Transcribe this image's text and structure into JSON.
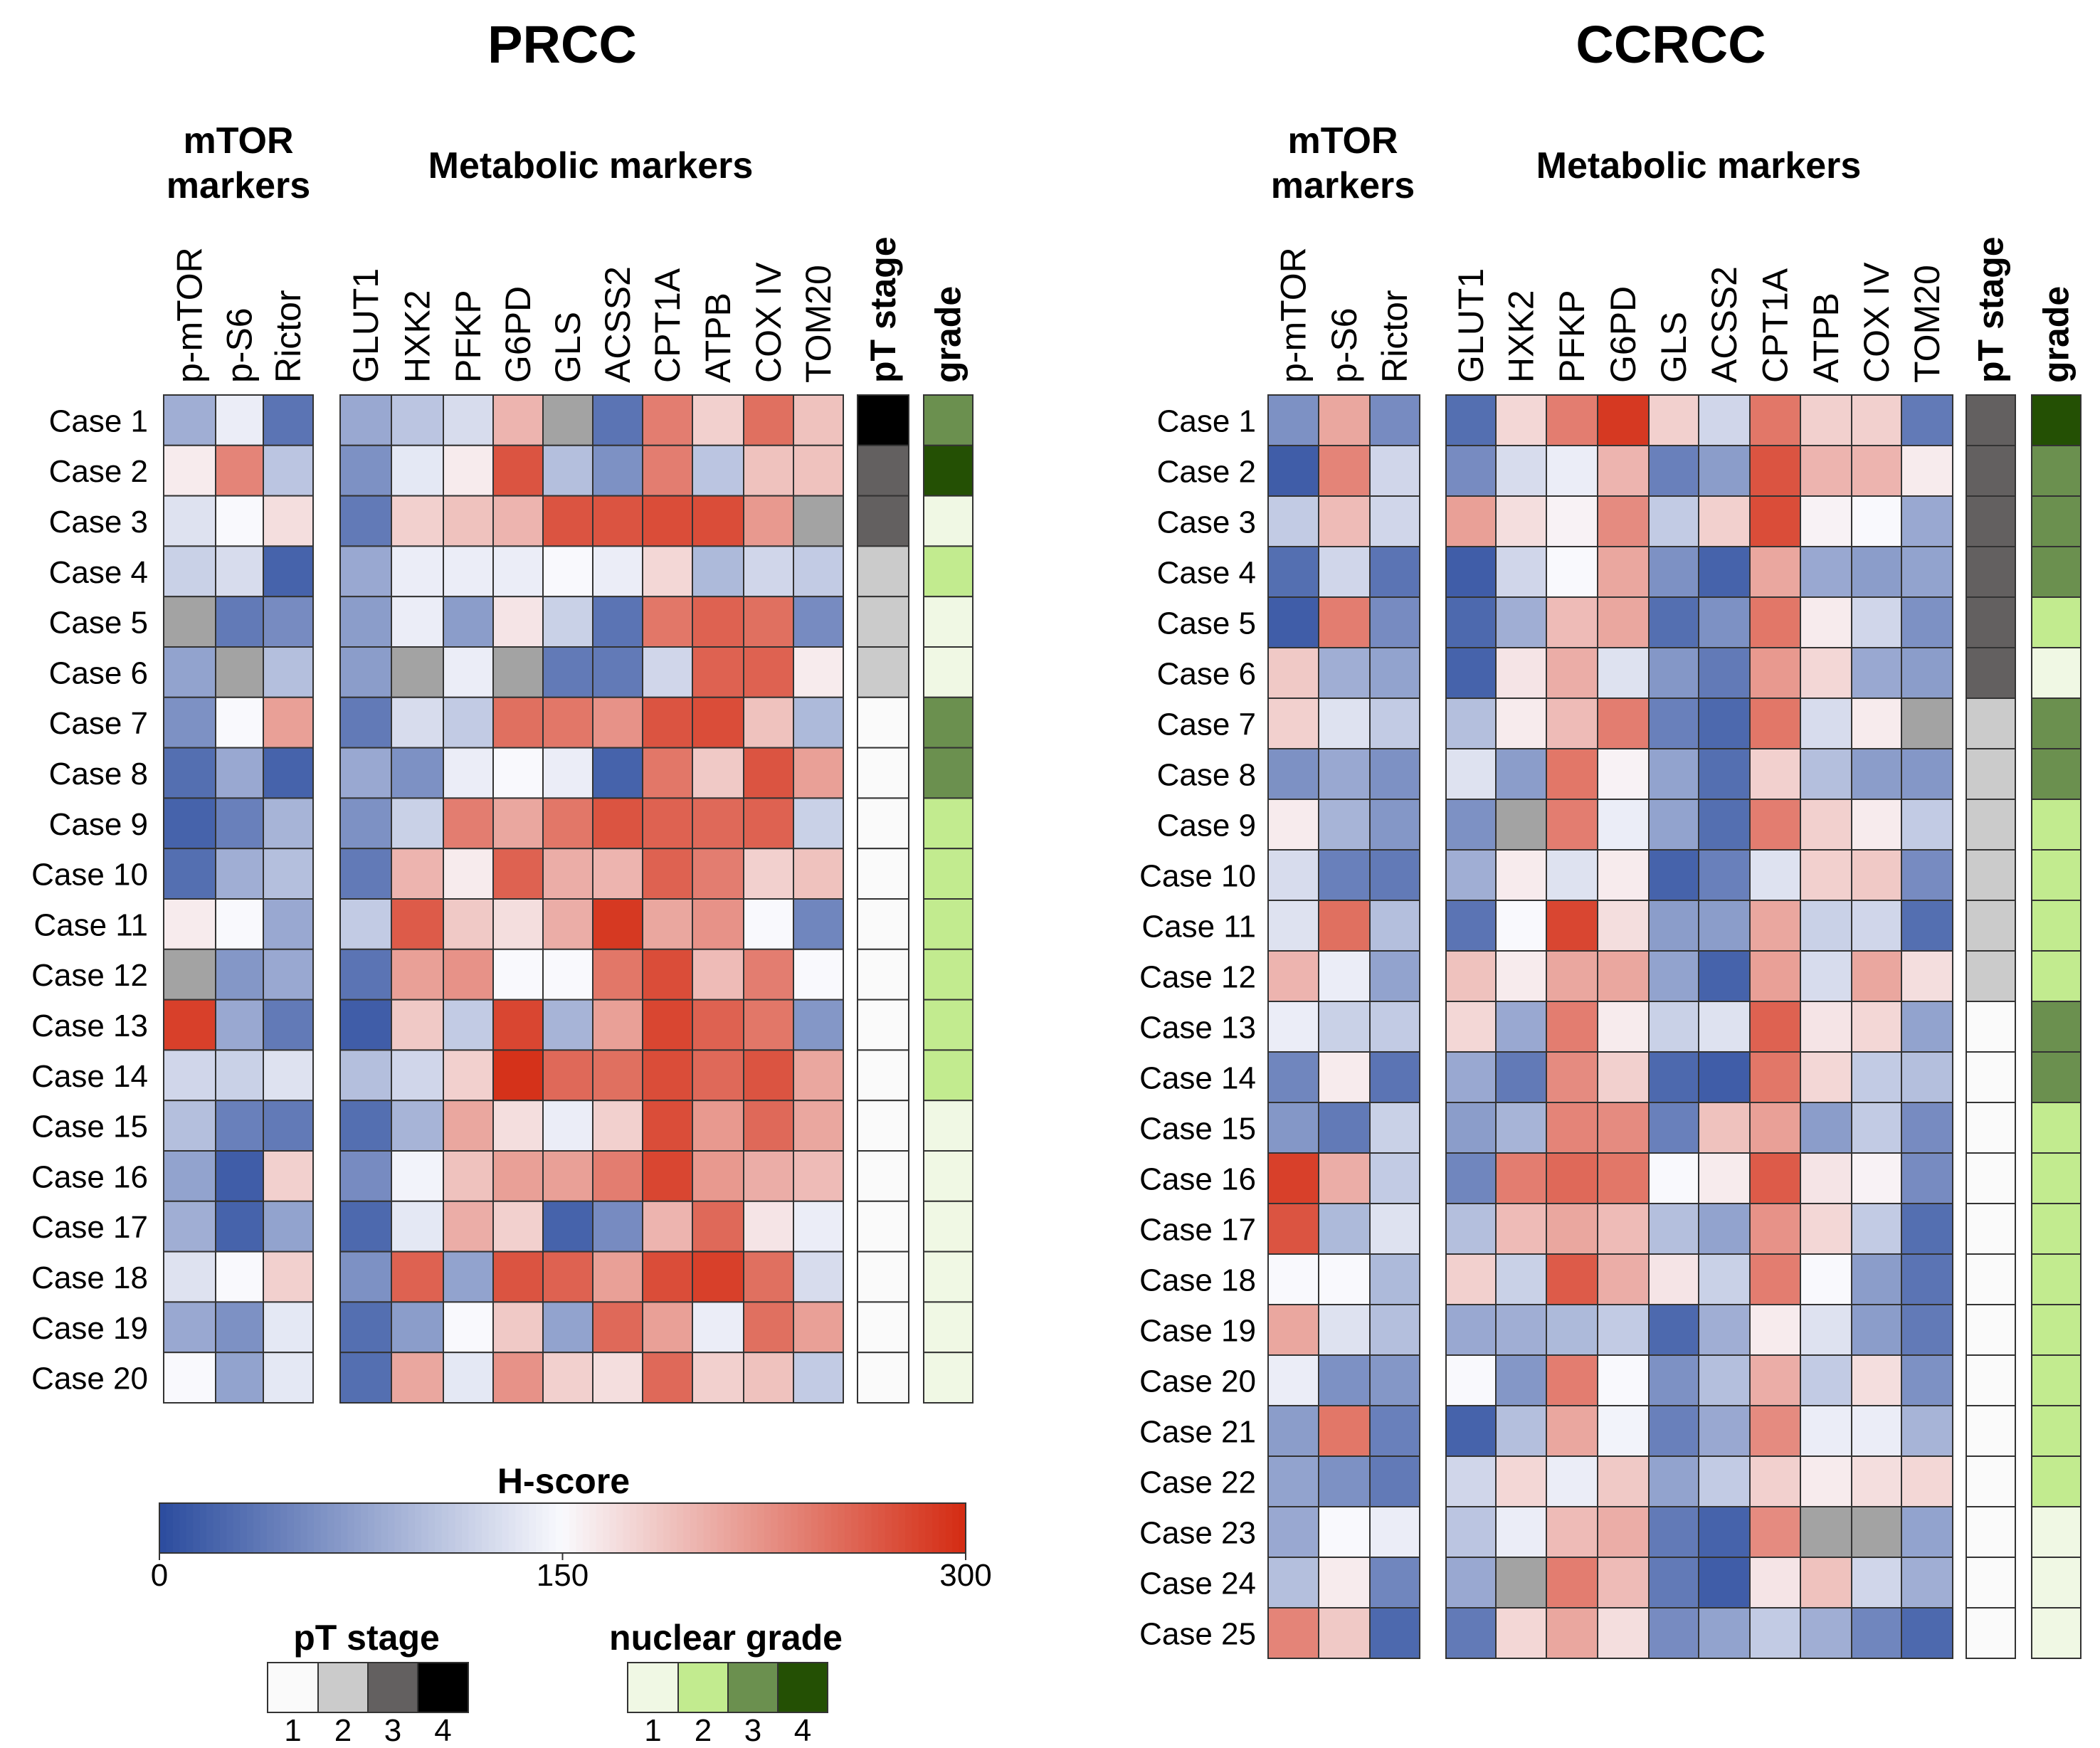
{
  "chart_data": [
    {
      "type": "heatmap",
      "title": "PRCC",
      "groups": {
        "mtor": "mTOR markers",
        "metabolic": "Metabolic markers"
      },
      "mtor_columns": [
        "p-mTOR",
        "p-S6",
        "Rictor"
      ],
      "metabolic_columns": [
        "GLUT1",
        "HXK2",
        "PFKP",
        "G6PD",
        "GLS",
        "ACSS2",
        "CPT1A",
        "ATPB",
        "COX IV",
        "TOM20"
      ],
      "stage_label": "pT stage",
      "grade_label": "grade",
      "rows": [
        "Case 1",
        "Case 2",
        "Case 3",
        "Case 4",
        "Case 5",
        "Case 6",
        "Case 7",
        "Case 8",
        "Case 9",
        "Case 10",
        "Case 11",
        "Case 12",
        "Case 13",
        "Case 14",
        "Case 15",
        "Case 16",
        "Case 17",
        "Case 18",
        "Case 19",
        "Case 20"
      ],
      "hscore": [
        [
          85,
          140,
          35,
          80,
          105,
          125,
          200,
          null,
          35,
          240,
          180,
          250,
          190
        ],
        [
          160,
          235,
          105,
          60,
          135,
          160,
          270,
          100,
          60,
          240,
          105,
          190,
          190
        ],
        [
          130,
          150,
          170,
          40,
          180,
          190,
          200,
          270,
          270,
          275,
          275,
          220,
          null
        ],
        [
          115,
          125,
          20,
          80,
          140,
          140,
          140,
          150,
          140,
          175,
          95,
          120,
          110
        ],
        [
          null,
          40,
          55,
          70,
          140,
          70,
          165,
          115,
          35,
          245,
          260,
          250,
          55
        ],
        [
          75,
          null,
          100,
          70,
          null,
          140,
          null,
          40,
          40,
          120,
          260,
          260,
          160
        ],
        [
          60,
          150,
          215,
          40,
          125,
          110,
          250,
          245,
          225,
          270,
          275,
          190,
          95
        ],
        [
          30,
          80,
          20,
          80,
          60,
          140,
          150,
          140,
          20,
          245,
          185,
          270,
          215
        ],
        [
          20,
          45,
          90,
          60,
          115,
          240,
          210,
          245,
          270,
          260,
          255,
          260,
          115
        ],
        [
          30,
          85,
          100,
          40,
          200,
          160,
          260,
          205,
          200,
          260,
          240,
          180,
          190
        ],
        [
          160,
          150,
          80,
          110,
          265,
          185,
          170,
          205,
          290,
          210,
          225,
          150,
          50
        ],
        [
          null,
          65,
          80,
          35,
          215,
          225,
          150,
          150,
          245,
          275,
          195,
          240,
          150
        ],
        [
          285,
          80,
          40,
          15,
          185,
          110,
          280,
          90,
          215,
          280,
          260,
          245,
          65
        ],
        [
          120,
          115,
          130,
          100,
          120,
          180,
          295,
          255,
          250,
          275,
          255,
          270,
          210
        ],
        [
          100,
          45,
          40,
          30,
          90,
          210,
          170,
          140,
          180,
          275,
          220,
          255,
          210
        ],
        [
          75,
          15,
          180,
          55,
          145,
          190,
          215,
          215,
          240,
          280,
          220,
          205,
          195
        ],
        [
          85,
          20,
          75,
          25,
          135,
          205,
          180,
          20,
          55,
          200,
          255,
          165,
          140
        ],
        [
          130,
          150,
          180,
          60,
          260,
          75,
          270,
          260,
          215,
          275,
          285,
          250,
          125
        ],
        [
          80,
          60,
          135,
          30,
          70,
          150,
          185,
          75,
          255,
          215,
          140,
          250,
          215
        ],
        [
          150,
          75,
          135,
          30,
          210,
          135,
          225,
          180,
          170,
          255,
          180,
          190,
          110
        ]
      ],
      "pT_stage": [
        4,
        3,
        3,
        2,
        2,
        2,
        1,
        1,
        1,
        1,
        1,
        1,
        1,
        1,
        1,
        1,
        1,
        1,
        1,
        1
      ],
      "grade": [
        3,
        4,
        1,
        2,
        1,
        1,
        3,
        3,
        2,
        2,
        2,
        2,
        2,
        2,
        1,
        1,
        1,
        1,
        1,
        1
      ]
    },
    {
      "type": "heatmap",
      "title": "CCRCC",
      "groups": {
        "mtor": "mTOR markers",
        "metabolic": "Metabolic markers"
      },
      "mtor_columns": [
        "p-mTOR",
        "p-S6",
        "Rictor"
      ],
      "metabolic_columns": [
        "GLUT1",
        "HXK2",
        "PFKP",
        "G6PD",
        "GLS",
        "ACSS2",
        "CPT1A",
        "ATPB",
        "COX IV",
        "TOM20"
      ],
      "stage_label": "pT stage",
      "grade_label": "grade",
      "rows": [
        "Case 1",
        "Case 2",
        "Case 3",
        "Case 4",
        "Case 5",
        "Case 6",
        "Case 7",
        "Case 8",
        "Case 9",
        "Case 10",
        "Case 11",
        "Case 12",
        "Case 13",
        "Case 14",
        "Case 15",
        "Case 16",
        "Case 17",
        "Case 18",
        "Case 19",
        "Case 20",
        "Case 21",
        "Case 22",
        "Case 23",
        "Case 24",
        "Case 25"
      ],
      "hscore": [
        [
          60,
          210,
          55,
          30,
          175,
          240,
          290,
          180,
          120,
          245,
          180,
          180,
          40
        ],
        [
          15,
          235,
          120,
          55,
          125,
          140,
          200,
          45,
          70,
          270,
          200,
          200,
          160
        ],
        [
          110,
          195,
          120,
          215,
          170,
          155,
          230,
          110,
          180,
          275,
          155,
          150,
          80
        ],
        [
          30,
          120,
          35,
          15,
          120,
          150,
          210,
          60,
          20,
          210,
          80,
          70,
          75
        ],
        [
          15,
          240,
          55,
          25,
          85,
          195,
          210,
          30,
          60,
          245,
          160,
          120,
          60
        ],
        [
          185,
          85,
          75,
          20,
          165,
          205,
          130,
          65,
          40,
          220,
          175,
          80,
          70
        ],
        [
          180,
          130,
          110,
          100,
          160,
          195,
          240,
          45,
          25,
          245,
          125,
          160,
          null
        ],
        [
          60,
          80,
          60,
          130,
          70,
          245,
          155,
          75,
          30,
          180,
          100,
          70,
          65
        ],
        [
          160,
          90,
          65,
          60,
          null,
          240,
          140,
          75,
          30,
          240,
          180,
          160,
          110
        ],
        [
          125,
          45,
          40,
          85,
          160,
          130,
          160,
          20,
          45,
          130,
          180,
          185,
          55
        ],
        [
          130,
          250,
          100,
          35,
          150,
          280,
          170,
          70,
          70,
          210,
          115,
          120,
          30
        ],
        [
          200,
          140,
          75,
          190,
          160,
          210,
          210,
          75,
          20,
          215,
          125,
          210,
          170
        ],
        [
          140,
          115,
          110,
          175,
          80,
          240,
          160,
          115,
          130,
          260,
          165,
          175,
          75
        ],
        [
          50,
          160,
          35,
          80,
          40,
          230,
          180,
          25,
          15,
          245,
          175,
          110,
          100
        ],
        [
          65,
          40,
          115,
          70,
          90,
          235,
          230,
          45,
          190,
          215,
          70,
          110,
          55
        ],
        [
          285,
          205,
          110,
          50,
          240,
          255,
          245,
          150,
          160,
          265,
          165,
          155,
          55
        ],
        [
          270,
          95,
          130,
          100,
          195,
          210,
          195,
          100,
          75,
          225,
          175,
          110,
          30
        ],
        [
          150,
          150,
          95,
          180,
          115,
          265,
          205,
          165,
          115,
          240,
          150,
          70,
          35
        ],
        [
          210,
          130,
          100,
          80,
          85,
          95,
          110,
          25,
          85,
          160,
          130,
          70,
          40
        ],
        [
          140,
          60,
          65,
          150,
          65,
          240,
          150,
          60,
          100,
          205,
          110,
          170,
          60
        ],
        [
          70,
          245,
          45,
          20,
          100,
          210,
          145,
          45,
          80,
          230,
          140,
          140,
          90
        ],
        [
          75,
          60,
          40,
          120,
          175,
          140,
          185,
          75,
          110,
          180,
          160,
          170,
          175
        ],
        [
          80,
          150,
          140,
          105,
          140,
          195,
          205,
          40,
          20,
          230,
          null,
          null,
          75
        ],
        [
          100,
          160,
          50,
          80,
          null,
          240,
          195,
          40,
          15,
          165,
          190,
          120,
          85
        ],
        [
          235,
          185,
          25,
          40,
          175,
          210,
          170,
          55,
          75,
          110,
          85,
          50,
          25
        ]
      ],
      "pT_stage": [
        3,
        3,
        3,
        3,
        3,
        3,
        2,
        2,
        2,
        2,
        2,
        2,
        1,
        1,
        1,
        1,
        1,
        1,
        1,
        1,
        1,
        1,
        1,
        1,
        1
      ],
      "grade": [
        4,
        3,
        3,
        3,
        2,
        1,
        3,
        3,
        2,
        2,
        2,
        2,
        3,
        3,
        2,
        2,
        2,
        2,
        2,
        2,
        2,
        2,
        1,
        1,
        1
      ]
    }
  ],
  "legend": {
    "hscore_title": "H-score",
    "hscore_min": 0,
    "hscore_mid": 150,
    "hscore_max": 300,
    "hscore_tick_labels": [
      "0",
      "150",
      "300"
    ],
    "pT_title": "pT stage",
    "pT_levels": [
      "1",
      "2",
      "3",
      "4"
    ],
    "grade_title": "nuclear grade",
    "grade_levels": [
      "1",
      "2",
      "3",
      "4"
    ]
  },
  "colors": {
    "low": "#2b4c9e",
    "mid": "#f9f9fd",
    "high": "#d42b12",
    "missing": "#a3a3a3",
    "stage": [
      "#fafafa",
      "#cbcbcb",
      "#636060",
      "#000000"
    ],
    "grade": [
      "#f0f8e4",
      "#c2eb8f",
      "#6b904f",
      "#245004"
    ]
  }
}
